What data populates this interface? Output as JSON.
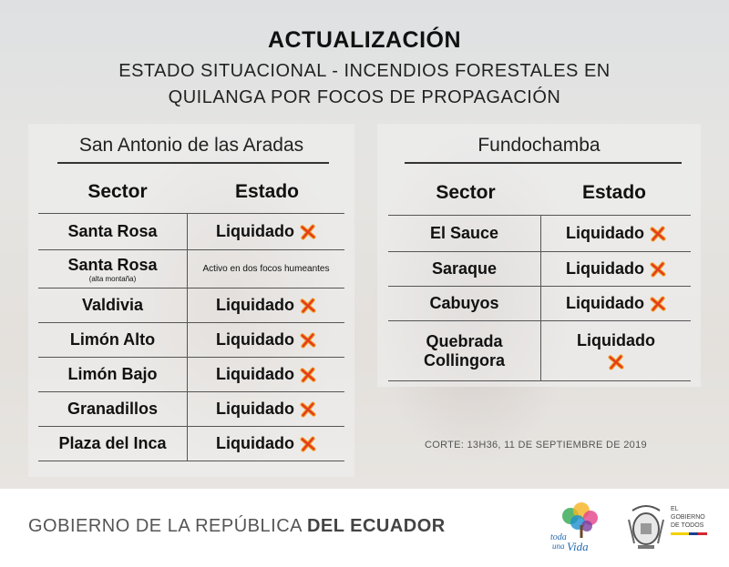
{
  "title": "ACTUALIZACIÓN",
  "subtitle_line1": "ESTADO SITUACIONAL - INCENDIOS FORESTALES EN",
  "subtitle_line2": "QUILANGA POR FOCOS DE PROPAGACIÓN",
  "left_panel": {
    "name": "San Antonio de las Aradas",
    "col_sector": "Sector",
    "col_estado": "Estado",
    "rows": [
      {
        "sector": "Santa Rosa",
        "sub": "",
        "estado": "Liquidado",
        "icon": "x-icon"
      },
      {
        "sector": "Santa Rosa",
        "sub": "(alta montaña)",
        "estado": "Activo en dos focos humeantes",
        "icon": ""
      },
      {
        "sector": "Valdivia",
        "sub": "",
        "estado": "Liquidado",
        "icon": "x-icon"
      },
      {
        "sector": "Limón Alto",
        "sub": "",
        "estado": "Liquidado",
        "icon": "x-icon"
      },
      {
        "sector": "Limón Bajo",
        "sub": "",
        "estado": "Liquidado",
        "icon": "x-icon"
      },
      {
        "sector": "Granadillos",
        "sub": "",
        "estado": "Liquidado",
        "icon": "x-icon"
      },
      {
        "sector": "Plaza del Inca",
        "sub": "",
        "estado": "Liquidado",
        "icon": "x-icon"
      }
    ]
  },
  "right_panel": {
    "name": "Fundochamba",
    "col_sector": "Sector",
    "col_estado": "Estado",
    "rows": [
      {
        "sector": "El Sauce",
        "sector2": "",
        "estado": "Liquidado",
        "icon": "x-icon"
      },
      {
        "sector": "Saraque",
        "sector2": "",
        "estado": "Liquidado",
        "icon": "x-icon"
      },
      {
        "sector": "Cabuyos",
        "sector2": "",
        "estado": "Liquidado",
        "icon": "x-icon"
      },
      {
        "sector": "Quebrada",
        "sector2": "Collingora",
        "estado": "Liquidado",
        "icon": "x-icon"
      }
    ]
  },
  "corte": "CORTE: 13H36, 11 DE SEPTIEMBRE DE 2019",
  "footer": {
    "gob_light": "GOBIERNO DE LA REPÚBLICA",
    "gob_bold": "DEL ECUADOR",
    "toda_una_vida": [
      "toda",
      "una",
      "Vida"
    ],
    "el_gobierno": [
      "EL",
      "GOBIERNO",
      "DE TODOS"
    ]
  },
  "colors": {
    "x_red": "#e23a1f",
    "x_orange": "#f29a1f"
  }
}
